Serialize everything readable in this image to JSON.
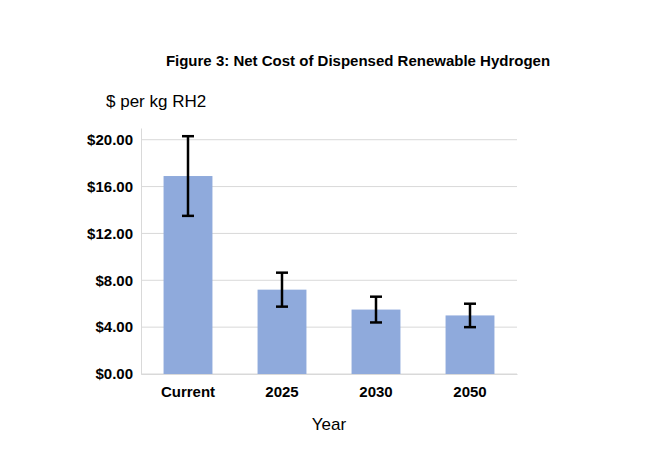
{
  "chart_data": {
    "type": "bar",
    "title": "Figure 3: Net Cost of Dispensed Renewable Hydrogen",
    "y_label": "$ per kg RH2",
    "x_label": "Year",
    "categories": [
      "Current",
      "2025",
      "2030",
      "2050"
    ],
    "values": [
      16.9,
      7.2,
      5.5,
      5.0
    ],
    "errors": [
      3.4,
      1.45,
      1.1,
      1.0
    ],
    "color": "#8faadc",
    "ylim": [
      0,
      21
    ],
    "yticks": [
      {
        "value": 0,
        "label": "$0.00"
      },
      {
        "value": 4,
        "label": "$4.00"
      },
      {
        "value": 8,
        "label": "$8.00"
      },
      {
        "value": 12,
        "label": "$12.00"
      },
      {
        "value": 16,
        "label": "$16.00"
      },
      {
        "value": 20,
        "label": "$20.00"
      }
    ],
    "grid": true
  }
}
